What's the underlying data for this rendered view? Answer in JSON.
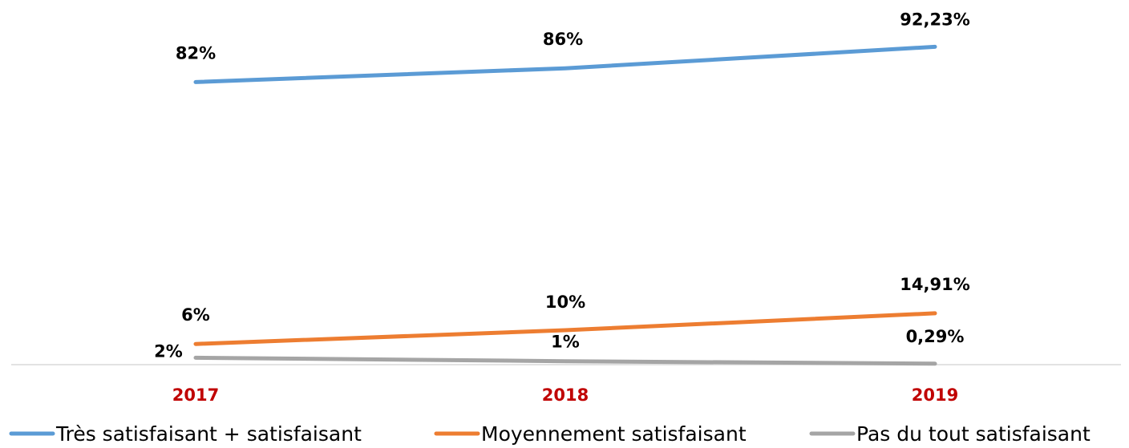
{
  "chart_data": {
    "type": "line",
    "categories": [
      "2017",
      "2018",
      "2019"
    ],
    "series": [
      {
        "name": "Très satisfaisant + satisfaisant",
        "values": [
          82,
          86,
          92.23
        ],
        "labels": [
          "82%",
          "86%",
          "92,23%"
        ],
        "color": "#5B9BD5"
      },
      {
        "name": "Moyennement satisfaisant",
        "values": [
          6,
          10,
          14.91
        ],
        "labels": [
          "6%",
          "10%",
          "14,91%"
        ],
        "color": "#ED7D31"
      },
      {
        "name": "Pas du tout satisfaisant",
        "values": [
          2,
          1,
          0.29
        ],
        "labels": [
          "2%",
          "1%",
          "0,29%"
        ],
        "color": "#A5A5A5"
      }
    ],
    "category_label_color": "#C00000",
    "axis_color": "#D9D9D9",
    "ylim": [
      0,
      100
    ],
    "grid": false,
    "legend_position": "bottom"
  }
}
